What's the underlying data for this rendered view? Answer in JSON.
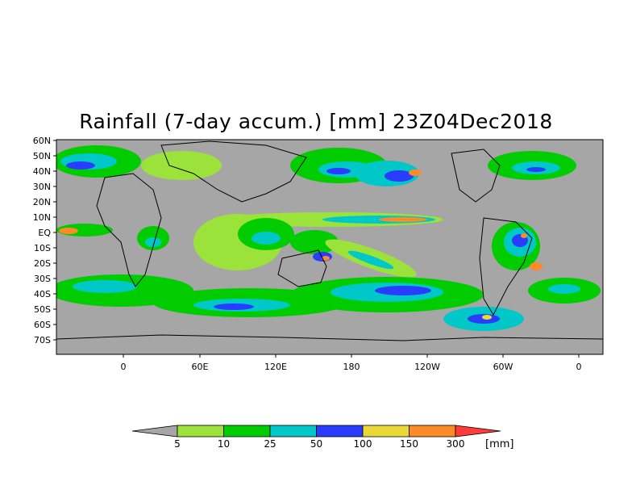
{
  "title": "Rainfall (7-day accum.) [mm] 23Z04Dec2018",
  "map": {
    "lat_labels": [
      "60N",
      "50N",
      "40N",
      "30N",
      "20N",
      "10N",
      "EQ",
      "10S",
      "20S",
      "30S",
      "40S",
      "50S",
      "60S",
      "70S"
    ],
    "lon_labels": [
      "0",
      "60E",
      "120E",
      "180",
      "120W",
      "60W",
      "0"
    ]
  },
  "colorbar": {
    "levels": [
      "5",
      "10",
      "25",
      "50",
      "100",
      "150",
      "300"
    ],
    "unit": "[mm]",
    "colors": {
      "below": "#a6a6a6",
      "bins": [
        "#9be33a",
        "#00cc00",
        "#00c8c8",
        "#2a3cff",
        "#e8d838",
        "#ff8a28",
        "#ff3c3c"
      ]
    }
  },
  "colors": {
    "land_fill": "#a6a6a6",
    "border": "#000000"
  }
}
